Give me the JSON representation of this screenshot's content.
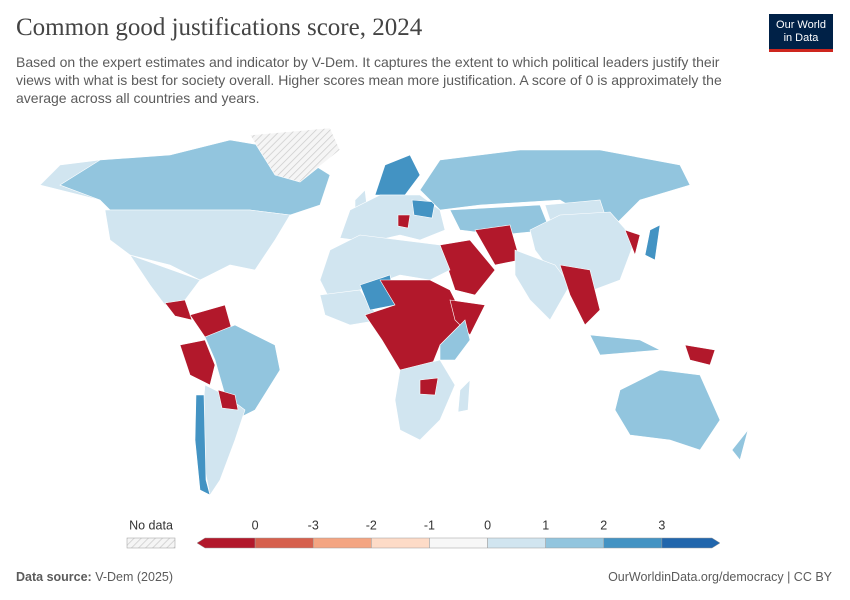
{
  "header": {
    "title": "Common good justifications score, 2024",
    "subtitle": "Based on the expert estimates and indicator by V-Dem. It captures the extent to which political leaders justify their views with what is best for society overall. Higher scores mean more justification. A score of 0 is approximately the average across all countries and years.",
    "logo": [
      "Our World",
      "in Data"
    ]
  },
  "legend": {
    "no_data": "No data",
    "ticks": [
      "0",
      "-3",
      "-2",
      "-1",
      "0",
      "1",
      "2",
      "3"
    ],
    "colors": [
      "#b2182b",
      "#d6604d",
      "#f4a582",
      "#fddbc7",
      "#f7f7f7",
      "#d1e5f0",
      "#92c5de",
      "#4393c3",
      "#2166ac"
    ]
  },
  "footer": {
    "source_label": "Data source:",
    "source": "V-Dem (2025)",
    "url": "OurWorldinData.org/democracy | CC BY"
  }
}
